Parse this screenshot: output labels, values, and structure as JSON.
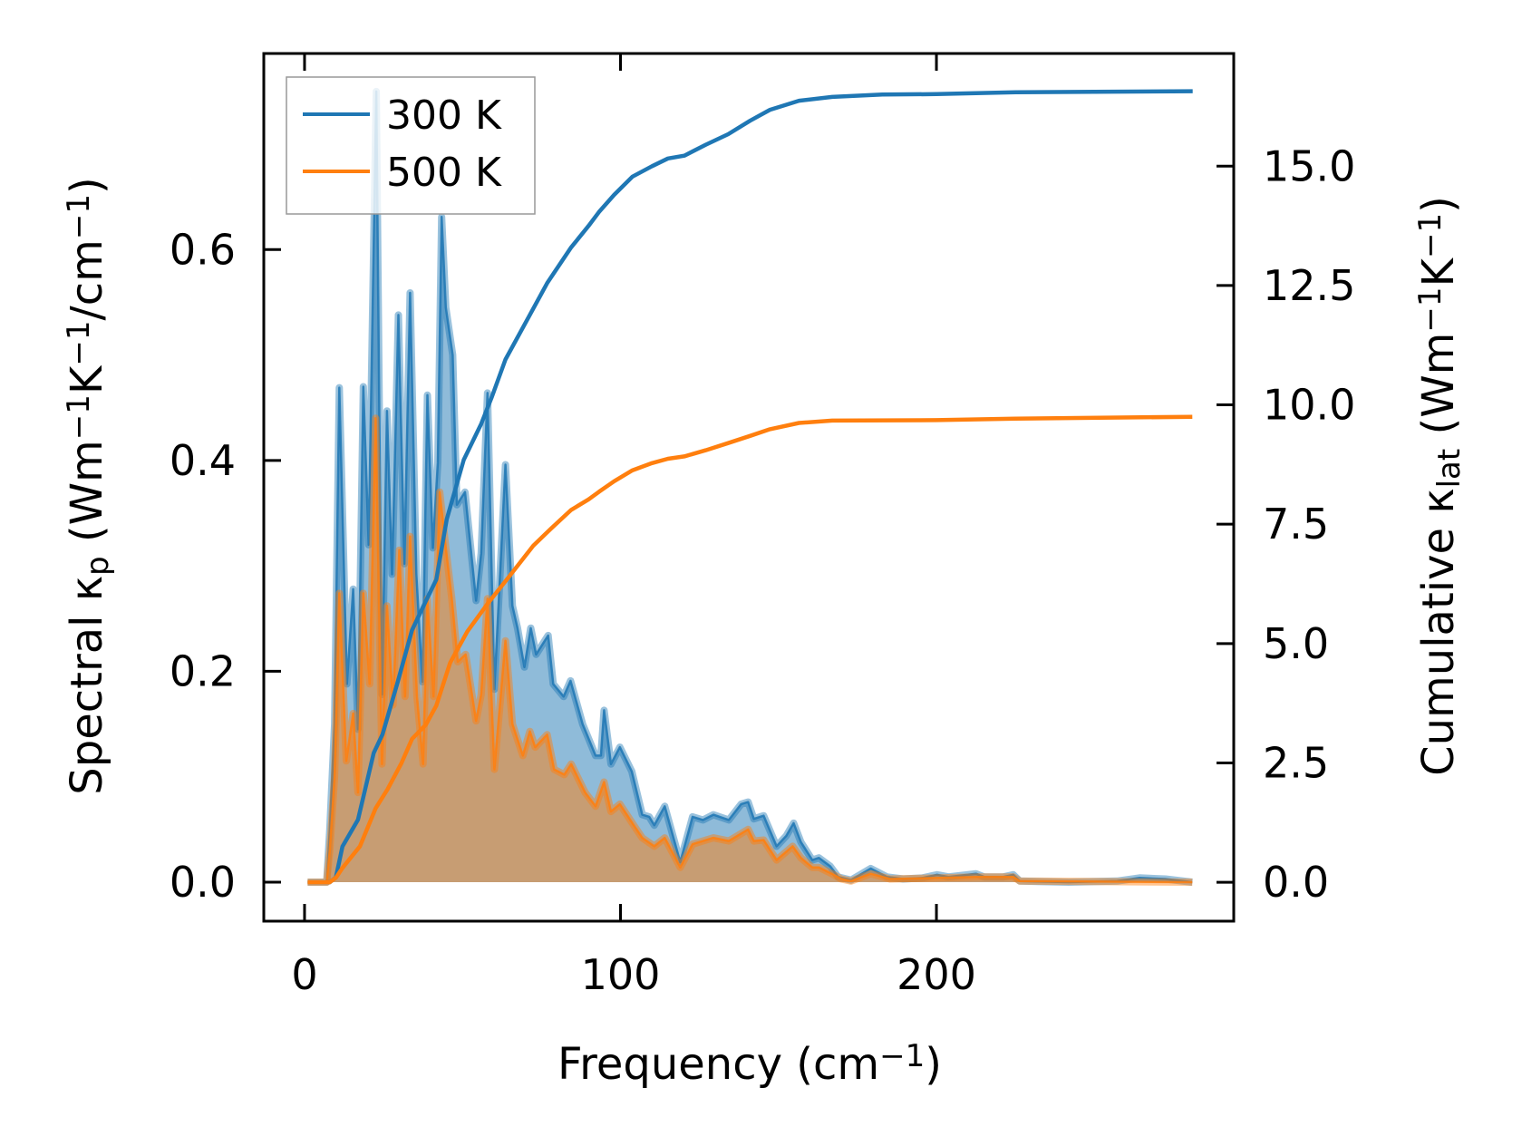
{
  "chart_data": {
    "type": "line",
    "xlabel": "Frequency (cm^{−1})",
    "ylabel_left": "Spectral κ_{p} (Wm^{−1}K^{−1}/cm^{−1})",
    "ylabel_right": "Cumulative κ_{lat} (Wm^{−1}K^{−1})",
    "xlim": [
      -12.9,
      294.1
    ],
    "ylim_left": [
      -0.037,
      0.786
    ],
    "ylim_right": [
      -0.815,
      17.36
    ],
    "xticks": [
      0,
      100,
      200
    ],
    "xtick_labels": [
      "0",
      "100",
      "200"
    ],
    "yticks_left": [
      0.0,
      0.2,
      0.4,
      0.6
    ],
    "ytick_labels_left": [
      "0.0",
      "0.2",
      "0.4",
      "0.6"
    ],
    "yticks_right": [
      0,
      2.5,
      5,
      7.5,
      10,
      12.5,
      15
    ],
    "ytick_labels_right": [
      "0.0",
      "2.5",
      "5.0",
      "7.5",
      "10.0",
      "12.5",
      "15.0"
    ],
    "grid": false,
    "legend": {
      "placement": "top-left",
      "entries": [
        "300 K",
        "500 K"
      ]
    },
    "colors": {
      "300 K": "#1f77b4",
      "500 K": "#ff7f0e"
    },
    "series": [
      {
        "name": "300 K",
        "kind": "spectral",
        "axis": "left",
        "filled": true,
        "points": [
          [
            1,
            0
          ],
          [
            7,
            0
          ],
          [
            8,
            0.05
          ],
          [
            9.5,
            0.15
          ],
          [
            11,
            0.469
          ],
          [
            13.4,
            0.188
          ],
          [
            15.4,
            0.278
          ],
          [
            16.9,
            0.145
          ],
          [
            18.6,
            0.47
          ],
          [
            20.3,
            0.32
          ],
          [
            22.7,
            0.75
          ],
          [
            24.5,
            0.178
          ],
          [
            26.1,
            0.447
          ],
          [
            27.7,
            0.292
          ],
          [
            29.7,
            0.538
          ],
          [
            31.6,
            0.302
          ],
          [
            33.4,
            0.559
          ],
          [
            35.4,
            0.292
          ],
          [
            37.3,
            0.19
          ],
          [
            38.9,
            0.462
          ],
          [
            40.6,
            0.317
          ],
          [
            42.2,
            0.398
          ],
          [
            43.4,
            0.631
          ],
          [
            44.7,
            0.545
          ],
          [
            46.9,
            0.5
          ],
          [
            48.2,
            0.358
          ],
          [
            50.8,
            0.37
          ],
          [
            54.3,
            0.267
          ],
          [
            55.9,
            0.312
          ],
          [
            57.9,
            0.464
          ],
          [
            60.1,
            0.183
          ],
          [
            63.6,
            0.396
          ],
          [
            65.8,
            0.262
          ],
          [
            67.4,
            0.241
          ],
          [
            69.6,
            0.204
          ],
          [
            71.6,
            0.241
          ],
          [
            73.3,
            0.216
          ],
          [
            77.1,
            0.234
          ],
          [
            78.7,
            0.188
          ],
          [
            82.0,
            0.176
          ],
          [
            84.2,
            0.191
          ],
          [
            88.0,
            0.15
          ],
          [
            92.1,
            0.12
          ],
          [
            93.8,
            0.12
          ],
          [
            94.8,
            0.163
          ],
          [
            97.0,
            0.112
          ],
          [
            99.8,
            0.128
          ],
          [
            103.6,
            0.105
          ],
          [
            106.9,
            0.064
          ],
          [
            109.1,
            0.062
          ],
          [
            110.7,
            0.054
          ],
          [
            114.0,
            0.072
          ],
          [
            118.9,
            0.019
          ],
          [
            122.8,
            0.062
          ],
          [
            126.1,
            0.059
          ],
          [
            129.4,
            0.064
          ],
          [
            134.3,
            0.059
          ],
          [
            138.2,
            0.074
          ],
          [
            140.4,
            0.076
          ],
          [
            142.2,
            0.06
          ],
          [
            145.3,
            0.063
          ],
          [
            149.4,
            0.034
          ],
          [
            152.5,
            0.044
          ],
          [
            154.8,
            0.056
          ],
          [
            157.1,
            0.038
          ],
          [
            160.7,
            0.021
          ],
          [
            162.8,
            0.023
          ],
          [
            166.4,
            0.015
          ],
          [
            168.9,
            0.005
          ],
          [
            173,
            0.002
          ],
          [
            179.2,
            0.013
          ],
          [
            184.3,
            0.005
          ],
          [
            189.5,
            0.003
          ],
          [
            195.6,
            0.004
          ],
          [
            200.2,
            0.007
          ],
          [
            203.8,
            0.005
          ],
          [
            212.5,
            0.008
          ],
          [
            215.1,
            0.005
          ],
          [
            221.2,
            0.005
          ],
          [
            224.3,
            0.007
          ],
          [
            226.4,
            0.001
          ],
          [
            241.8,
            0
          ],
          [
            257.2,
            0.001
          ],
          [
            264.3,
            0.004
          ],
          [
            272.5,
            0.003
          ],
          [
            281,
            0
          ]
        ]
      },
      {
        "name": "500 K",
        "kind": "spectral",
        "axis": "left",
        "filled": true,
        "points": [
          [
            1,
            0
          ],
          [
            7,
            0
          ],
          [
            8,
            0.03
          ],
          [
            9.5,
            0.1
          ],
          [
            11,
            0.274
          ],
          [
            13.2,
            0.115
          ],
          [
            15.4,
            0.16
          ],
          [
            16.9,
            0.085
          ],
          [
            18.6,
            0.274
          ],
          [
            20.6,
            0.188
          ],
          [
            22.5,
            0.44
          ],
          [
            24.5,
            0.112
          ],
          [
            26.1,
            0.262
          ],
          [
            28,
            0.168
          ],
          [
            30,
            0.315
          ],
          [
            31.8,
            0.176
          ],
          [
            33.4,
            0.328
          ],
          [
            35.6,
            0.176
          ],
          [
            37.5,
            0.112
          ],
          [
            38.9,
            0.269
          ],
          [
            40.8,
            0.176
          ],
          [
            42.8,
            0.37
          ],
          [
            44.7,
            0.317
          ],
          [
            46.6,
            0.269
          ],
          [
            48.5,
            0.209
          ],
          [
            51,
            0.216
          ],
          [
            54.3,
            0.153
          ],
          [
            55.9,
            0.178
          ],
          [
            57.9,
            0.269
          ],
          [
            60.1,
            0.107
          ],
          [
            63.6,
            0.229
          ],
          [
            65.8,
            0.15
          ],
          [
            69.1,
            0.12
          ],
          [
            71.3,
            0.143
          ],
          [
            73,
            0.128
          ],
          [
            76.8,
            0.14
          ],
          [
            79,
            0.107
          ],
          [
            82.2,
            0.102
          ],
          [
            84.4,
            0.112
          ],
          [
            88.8,
            0.085
          ],
          [
            92.1,
            0.072
          ],
          [
            94.8,
            0.095
          ],
          [
            97,
            0.067
          ],
          [
            99.8,
            0.074
          ],
          [
            104.2,
            0.054
          ],
          [
            106.9,
            0.042
          ],
          [
            110.7,
            0.034
          ],
          [
            114,
            0.042
          ],
          [
            118.9,
            0.014
          ],
          [
            122.8,
            0.036
          ],
          [
            129.4,
            0.042
          ],
          [
            134.3,
            0.039
          ],
          [
            140.4,
            0.05
          ],
          [
            142.2,
            0.039
          ],
          [
            145.3,
            0.04
          ],
          [
            149.4,
            0.021
          ],
          [
            154.5,
            0.034
          ],
          [
            157.1,
            0.023
          ],
          [
            160.7,
            0.014
          ],
          [
            162.8,
            0.014
          ],
          [
            166.9,
            0.008
          ],
          [
            169.9,
            0.003
          ],
          [
            173,
            0.001
          ],
          [
            179.2,
            0.008
          ],
          [
            185.3,
            0.003
          ],
          [
            200.7,
            0.004
          ],
          [
            213,
            0.005
          ],
          [
            224.3,
            0.005
          ],
          [
            226.4,
            0.001
          ],
          [
            281,
            0
          ]
        ]
      },
      {
        "name": "300 K",
        "kind": "cumulative",
        "axis": "right",
        "filled": false,
        "points": [
          [
            1,
            0
          ],
          [
            8,
            0
          ],
          [
            9.9,
            0.1
          ],
          [
            12,
            0.75
          ],
          [
            16.9,
            1.31
          ],
          [
            21.9,
            2.71
          ],
          [
            24.7,
            3.1
          ],
          [
            29.6,
            4.22
          ],
          [
            34,
            5.28
          ],
          [
            38.4,
            5.89
          ],
          [
            41.7,
            6.34
          ],
          [
            45,
            7.6
          ],
          [
            50.4,
            8.85
          ],
          [
            55.9,
            9.6
          ],
          [
            59.2,
            10.15
          ],
          [
            63.6,
            10.95
          ],
          [
            70.2,
            11.75
          ],
          [
            76.8,
            12.55
          ],
          [
            84.4,
            13.3
          ],
          [
            89.9,
            13.75
          ],
          [
            93.2,
            14.04
          ],
          [
            98,
            14.4
          ],
          [
            103.8,
            14.78
          ],
          [
            110,
            15.0
          ],
          [
            115,
            15.16
          ],
          [
            120.2,
            15.22
          ],
          [
            127,
            15.45
          ],
          [
            134.1,
            15.67
          ],
          [
            141,
            15.95
          ],
          [
            147.3,
            16.18
          ],
          [
            156.5,
            16.37
          ],
          [
            167,
            16.45
          ],
          [
            182.9,
            16.5
          ],
          [
            200,
            16.51
          ],
          [
            225.1,
            16.55
          ],
          [
            281.1,
            16.57
          ]
        ]
      },
      {
        "name": "500 K",
        "kind": "cumulative",
        "axis": "right",
        "filled": false,
        "points": [
          [
            1,
            0
          ],
          [
            8,
            0
          ],
          [
            10,
            0.1
          ],
          [
            12,
            0.3
          ],
          [
            17.5,
            0.75
          ],
          [
            22.5,
            1.55
          ],
          [
            26.3,
            1.95
          ],
          [
            30.7,
            2.5
          ],
          [
            34,
            3.0
          ],
          [
            38.4,
            3.3
          ],
          [
            41.7,
            3.7
          ],
          [
            46.1,
            4.6
          ],
          [
            51.5,
            5.25
          ],
          [
            58.1,
            5.85
          ],
          [
            64.7,
            6.4
          ],
          [
            72.4,
            7.05
          ],
          [
            77.9,
            7.4
          ],
          [
            84.4,
            7.8
          ],
          [
            89.9,
            8.02
          ],
          [
            93.2,
            8.18
          ],
          [
            98,
            8.4
          ],
          [
            103.8,
            8.63
          ],
          [
            110,
            8.78
          ],
          [
            115,
            8.87
          ],
          [
            120.2,
            8.92
          ],
          [
            127,
            9.05
          ],
          [
            134.1,
            9.2
          ],
          [
            141,
            9.35
          ],
          [
            147.3,
            9.49
          ],
          [
            156.5,
            9.62
          ],
          [
            167,
            9.67
          ],
          [
            200,
            9.68
          ],
          [
            225,
            9.71
          ],
          [
            281,
            9.75
          ]
        ]
      }
    ]
  }
}
